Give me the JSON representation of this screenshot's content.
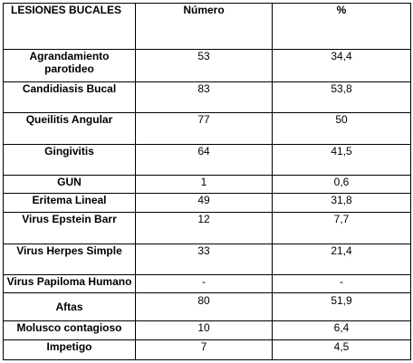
{
  "table": {
    "headers": [
      "LESIONES BUCALES",
      "Número",
      "%"
    ],
    "rows": [
      {
        "lesion": "Agrandamiento parotídeo",
        "lesion_display": "Agrandamiento parotideo",
        "numero": "53",
        "porcentaje": "34,4"
      },
      {
        "lesion": "Candidiasis Bucal",
        "numero": "83",
        "porcentaje": "53,8"
      },
      {
        "lesion": "Queilitis Angular",
        "numero": "77",
        "porcentaje": "50"
      },
      {
        "lesion": "Gingivitis",
        "numero": "64",
        "porcentaje": "41,5"
      },
      {
        "lesion": "GUN",
        "numero": "1",
        "porcentaje": "0,6"
      },
      {
        "lesion": "Eritema Lineal",
        "numero": "49",
        "porcentaje": "31,8"
      },
      {
        "lesion": "Virus Epstein Barr",
        "numero": "12",
        "porcentaje": "7,7"
      },
      {
        "lesion": "Virus Herpes Simple",
        "numero": "33",
        "porcentaje": "21,4"
      },
      {
        "lesion": "Virus Papiloma Humano",
        "numero": "-",
        "porcentaje": "-"
      },
      {
        "lesion": "Aftas",
        "numero": "80",
        "porcentaje": "51,9"
      },
      {
        "lesion": "Molusco contagioso",
        "numero": "10",
        "porcentaje": "6,4"
      },
      {
        "lesion": "Impetigo",
        "numero": "7",
        "porcentaje": "4,5"
      }
    ]
  }
}
